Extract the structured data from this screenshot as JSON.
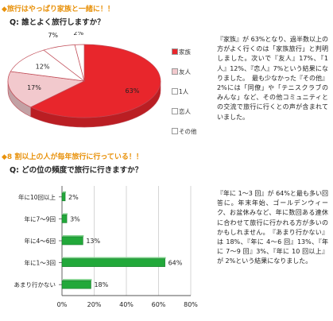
{
  "section1": {
    "title": "◆旅行はやっぱり家族と一緒に！！",
    "question": "Q: 誰とよく旅行しますか？",
    "paragraph": "『家族』が 63%となり、過半数以上の方がよく行くのは「家族旅行」と判明しました。次いで『友人』17%、『1 人』12%、『恋人』7%という結果になりました。　最も少なかった『その他』2%には「同僚」や「テニスクラブのみんな」など、その他コミュニティとの交流で旅行に行くとの声が含まれていました。"
  },
  "section2": {
    "title": "◆8 割以上の人が毎年旅行に行っている！！",
    "question": "Q: どの位の頻度で旅行に行きますか？",
    "paragraph": "『年に 1～3 回』が 64%と最も多い回答に。年末年始、ゴールデンウィーク、お盆休みなど、年に数回ある連休に合わせて旅行に行かれる方が多いのかもしれません。　『あまり行かない』は 18%、『年に 4～6 回』13%、『年に 7～9 回』3%、『年に 10 回以上』が 2%という結果になりました。"
  },
  "chart_data": [
    {
      "type": "pie",
      "title": "",
      "categories": [
        "家族",
        "友人",
        "1人",
        "恋人",
        "その他"
      ],
      "values": [
        63,
        17,
        12,
        7,
        2
      ],
      "value_labels": [
        "63%",
        "17%",
        "12%",
        "7%",
        "2%"
      ],
      "legend_position": "right",
      "colors": [
        "#e8262c",
        "#f2c9cd",
        "#ffffff",
        "#ffffff",
        "#ffffff"
      ]
    },
    {
      "type": "bar",
      "orientation": "horizontal",
      "title": "",
      "categories": [
        "年に10回以上",
        "年に7〜9回",
        "年に4〜6回",
        "年に1〜3回",
        "あまり行かない"
      ],
      "values": [
        2,
        3,
        13,
        64,
        18
      ],
      "value_labels": [
        "2%",
        "3%",
        "13%",
        "64%",
        "18%"
      ],
      "xlim": [
        0,
        80
      ],
      "xticks": [
        "0%",
        "20%",
        "40%",
        "60%",
        "80%"
      ],
      "grid": true,
      "colors": {
        "bar": "#22a83a"
      }
    }
  ]
}
